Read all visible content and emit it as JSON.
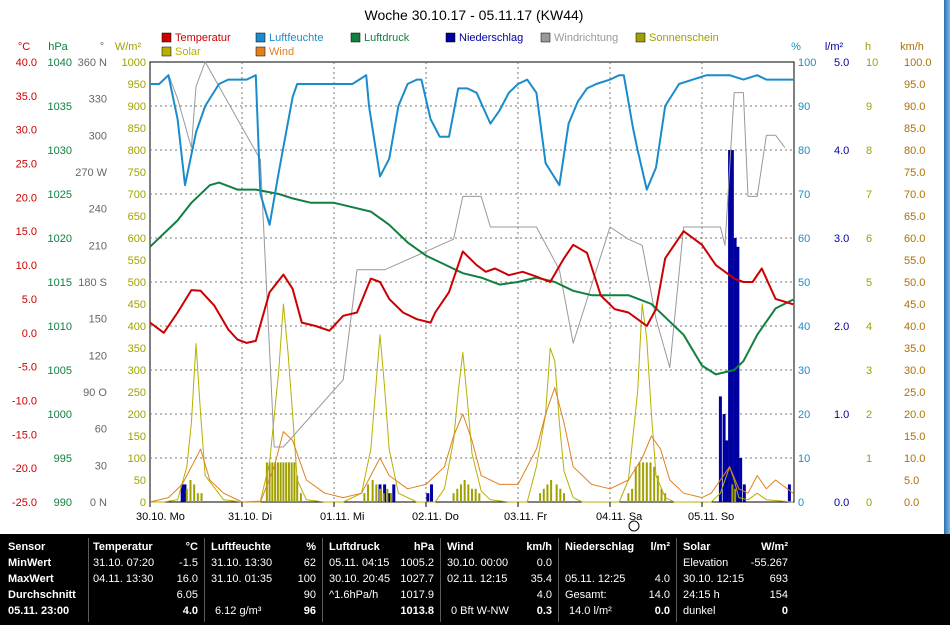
{
  "title": "Woche 30.10.17 - 05.11.17 (KW44)",
  "legend": [
    {
      "label": "Temperatur",
      "color": "#cc0000"
    },
    {
      "label": "Luftfeuchte",
      "color": "#1a8ccc"
    },
    {
      "label": "Luftdruck",
      "color": "#108040"
    },
    {
      "label": "Niederschlag",
      "color": "#0000a0"
    },
    {
      "label": "Windrichtung",
      "color": "#999999"
    },
    {
      "label": "Sonnenschein",
      "color": "#a0a000"
    },
    {
      "label": "Solar",
      "color": "#b8b000"
    },
    {
      "label": "Wind",
      "color": "#e08020"
    }
  ],
  "chart_data": {
    "type": "line",
    "title": "Woche 30.10.17 - 05.11.17 (KW44)",
    "x_tick_labels": [
      "30.10. Mo",
      "31.10. Di",
      "01.11. Mi",
      "02.11. Do",
      "03.11. Fr",
      "04.11. Sa",
      "05.11. So"
    ],
    "axes": {
      "temperature": {
        "unit": "°C",
        "range": [
          -25,
          40
        ],
        "ticks": [
          "40.0",
          "35.0",
          "30.0",
          "25.0",
          "20.0",
          "15.0",
          "10.0",
          "5.0",
          "0.0",
          "-5.0",
          "-10.0",
          "-15.0",
          "-20.0",
          "-25.0"
        ],
        "color": "#cc0000"
      },
      "pressure": {
        "unit": "hPa",
        "range": [
          990,
          1040
        ],
        "ticks": [
          "1040",
          "1035",
          "1030",
          "1025",
          "1020",
          "1015",
          "1010",
          "1005",
          "1000",
          "995",
          "990"
        ],
        "color": "#108040"
      },
      "wind_direction": {
        "unit": "°",
        "range": [
          0,
          360
        ],
        "ticks": [
          "360 N",
          "330",
          "300",
          "270 W",
          "240",
          "210",
          "180 S",
          "150",
          "120",
          "90 O",
          "60",
          "30",
          "0 N"
        ],
        "color": "#666666"
      },
      "solar": {
        "unit": "W/m²",
        "range": [
          0,
          1000
        ],
        "ticks": [
          "1000",
          "950",
          "900",
          "850",
          "800",
          "750",
          "700",
          "650",
          "600",
          "550",
          "500",
          "450",
          "400",
          "350",
          "300",
          "250",
          "200",
          "150",
          "100",
          "50",
          "0"
        ],
        "color": "#a0a000"
      },
      "humidity": {
        "unit": "%",
        "range": [
          0,
          100
        ],
        "ticks": [
          "100",
          "90",
          "80",
          "70",
          "60",
          "50",
          "40",
          "30",
          "20",
          "10",
          "0"
        ],
        "color": "#1a8ccc"
      },
      "precipitation": {
        "unit": "l/m²",
        "range": [
          0,
          5
        ],
        "ticks": [
          "5.0",
          "4.0",
          "3.0",
          "2.0",
          "1.0",
          "0.0"
        ],
        "color": "#0000a0"
      },
      "sunshine": {
        "unit": "h",
        "range": [
          0,
          10
        ],
        "ticks": [
          "10",
          "9",
          "8",
          "7",
          "6",
          "5",
          "4",
          "3",
          "2",
          "1",
          "0"
        ],
        "color": "#a0a000"
      },
      "wind_speed": {
        "unit": "km/h",
        "range": [
          0,
          100
        ],
        "ticks": [
          "100.0",
          "95.0",
          "90.0",
          "85.0",
          "80.0",
          "75.0",
          "70.0",
          "65.0",
          "60.0",
          "55.0",
          "50.0",
          "45.0",
          "40.0",
          "35.0",
          "30.0",
          "25.0",
          "20.0",
          "15.0",
          "10.0",
          "5.0",
          "0.0"
        ],
        "color": "#b07000"
      }
    },
    "x_unit": "day",
    "x_range": [
      0,
      7
    ],
    "series": [
      {
        "name": "Temperatur",
        "axis": "temperature",
        "color": "#cc0000",
        "x": [
          0,
          0.15,
          0.3,
          0.45,
          0.55,
          0.7,
          0.85,
          0.95,
          1.05,
          1.15,
          1.3,
          1.45,
          1.55,
          1.65,
          1.8,
          1.95,
          2.1,
          2.25,
          2.4,
          2.5,
          2.6,
          2.75,
          2.9,
          3.05,
          3.1,
          3.25,
          3.4,
          3.55,
          3.65,
          3.75,
          3.9,
          4.05,
          4.2,
          4.35,
          4.5,
          4.6,
          4.75,
          4.9,
          5.05,
          5.2,
          5.3,
          5.4,
          5.5,
          5.6,
          5.8,
          6.0,
          6.15,
          6.35,
          6.45,
          6.55,
          6.65,
          6.8,
          6.99
        ],
        "y": [
          1.5,
          0,
          3,
          6.3,
          6.2,
          4,
          0.5,
          -1,
          -1.5,
          -1.2,
          6,
          8.6,
          6.5,
          1.5,
          1,
          0.3,
          2.5,
          3,
          8,
          7.5,
          5,
          3,
          2,
          1.5,
          3,
          6,
          12,
          10,
          9,
          9.5,
          8.5,
          9,
          8.3,
          7.5,
          11,
          13,
          11.8,
          5.5,
          3.5,
          3,
          2,
          1,
          3.5,
          11,
          15,
          13,
          10,
          8,
          7.5,
          7.5,
          9.5,
          5,
          4.2
        ]
      },
      {
        "name": "Luftfeuchte",
        "axis": "humidity",
        "color": "#1a8ccc",
        "x": [
          0,
          0.1,
          0.2,
          0.3,
          0.38,
          0.5,
          0.6,
          0.75,
          0.85,
          0.95,
          1.05,
          1.15,
          1.2,
          1.3,
          1.4,
          1.55,
          1.6,
          1.75,
          1.9,
          2.05,
          2.2,
          2.35,
          2.38,
          2.5,
          2.6,
          2.7,
          2.8,
          2.9,
          2.95,
          3.05,
          3.15,
          3.25,
          3.35,
          3.45,
          3.55,
          3.7,
          3.8,
          3.9,
          4.0,
          4.1,
          4.2,
          4.3,
          4.45,
          4.55,
          4.65,
          4.75,
          4.85,
          5.0,
          5.1,
          5.15,
          5.25,
          5.3,
          5.4,
          5.5,
          5.6,
          5.75,
          5.9,
          6.05,
          6.15,
          6.3,
          6.45,
          6.6,
          6.7,
          6.8,
          6.99
        ],
        "y": [
          95,
          95,
          97,
          87,
          72,
          84,
          90,
          95,
          96,
          96,
          96,
          97,
          70,
          63,
          75,
          92,
          95,
          95,
          95,
          95,
          95,
          97,
          90,
          74,
          78,
          90,
          95,
          96,
          96,
          87,
          83,
          83,
          94,
          94,
          93,
          86,
          89,
          93,
          95,
          96,
          93,
          77,
          72,
          86,
          91,
          94,
          95,
          96,
          97,
          97,
          85,
          80,
          71,
          76,
          90,
          95,
          96,
          97,
          97,
          97,
          96,
          97,
          96,
          96,
          96
        ]
      },
      {
        "name": "Luftdruck",
        "axis": "pressure",
        "color": "#108040",
        "x": [
          0,
          0.3,
          0.45,
          0.65,
          0.75,
          0.95,
          1.15,
          1.4,
          1.55,
          1.75,
          2.0,
          2.2,
          2.4,
          2.6,
          2.8,
          3.0,
          3.2,
          3.4,
          3.6,
          3.8,
          4.0,
          4.2,
          4.4,
          4.6,
          4.8,
          5.0,
          5.2,
          5.45,
          5.6,
          5.8,
          6.0,
          6.15,
          6.35,
          6.45,
          6.6,
          6.8,
          6.99
        ],
        "y": [
          1019,
          1022,
          1024,
          1026,
          1026.3,
          1025.5,
          1025.5,
          1025,
          1024.5,
          1024,
          1024,
          1023.5,
          1023,
          1021.5,
          1019.5,
          1018,
          1017,
          1016,
          1015.5,
          1014.7,
          1015,
          1015.5,
          1015,
          1014,
          1013.5,
          1013.5,
          1013.5,
          1012.5,
          1011,
          1009,
          1005.5,
          1004.5,
          1005,
          1006,
          1009,
          1012,
          1013
        ]
      },
      {
        "name": "Windrichtung",
        "axis": "wind_direction",
        "color": "#999999",
        "x": [
          0.2,
          0.3,
          0.45,
          0.5,
          0.6,
          1.2,
          1.35,
          1.45,
          2.1,
          2.25,
          2.38,
          2.55,
          3.3,
          3.4,
          3.6,
          3.7,
          3.85,
          4.0,
          4.2,
          4.45,
          4.5,
          4.55,
          4.6,
          5.0,
          5.2,
          5.35,
          5.5,
          5.65,
          5.8,
          6.2,
          6.25,
          6.35,
          6.45,
          6.5,
          6.6,
          6.7,
          6.8,
          6.9
        ],
        "y": [
          350,
          330,
          290,
          340,
          360,
          280,
          45,
          45,
          100,
          190,
          190,
          190,
          215,
          250,
          250,
          225,
          225,
          225,
          225,
          190,
          170,
          150,
          130,
          225,
          215,
          210,
          150,
          110,
          225,
          225,
          210,
          335,
          335,
          250,
          250,
          300,
          300,
          290
        ]
      },
      {
        "name": "Solar",
        "axis": "solar",
        "color": "#b8b000",
        "x": [
          0,
          0.15,
          0.3,
          0.4,
          0.45,
          0.5,
          0.55,
          0.6,
          0.8,
          1.0,
          1.2,
          1.3,
          1.4,
          1.45,
          1.5,
          1.55,
          1.6,
          1.7,
          1.9,
          2.1,
          2.3,
          2.4,
          2.45,
          2.5,
          2.55,
          2.6,
          2.7,
          2.9,
          3.1,
          3.2,
          3.3,
          3.35,
          3.4,
          3.45,
          3.5,
          3.6,
          3.7,
          3.9,
          4.1,
          4.2,
          4.3,
          4.35,
          4.4,
          4.45,
          4.5,
          4.6,
          4.7,
          4.9,
          5.1,
          5.2,
          5.3,
          5.35,
          5.4,
          5.45,
          5.5,
          5.6,
          5.7,
          5.9,
          6.1,
          6.2,
          6.3,
          6.35,
          6.4,
          6.5,
          6.6,
          6.7,
          6.99
        ],
        "y": [
          0,
          0,
          5,
          80,
          180,
          360,
          200,
          60,
          5,
          0,
          2,
          90,
          300,
          450,
          340,
          200,
          50,
          5,
          0,
          0,
          20,
          120,
          250,
          380,
          260,
          120,
          20,
          0,
          0,
          30,
          140,
          250,
          340,
          230,
          110,
          25,
          5,
          0,
          0,
          80,
          200,
          350,
          320,
          180,
          70,
          10,
          0,
          0,
          0,
          50,
          250,
          450,
          370,
          200,
          60,
          10,
          0,
          0,
          0,
          20,
          80,
          50,
          10,
          5,
          20,
          5,
          0
        ]
      },
      {
        "name": "Wind",
        "axis": "wind_speed",
        "color": "#e08020",
        "x": [
          0,
          0.2,
          0.35,
          0.45,
          0.55,
          0.65,
          0.8,
          1.0,
          1.2,
          1.35,
          1.45,
          1.55,
          1.7,
          1.9,
          2.1,
          2.3,
          2.4,
          2.5,
          2.6,
          2.8,
          3.0,
          3.2,
          3.3,
          3.4,
          3.5,
          3.6,
          3.8,
          4.0,
          4.2,
          4.3,
          4.4,
          4.5,
          4.6,
          4.8,
          5.0,
          5.2,
          5.35,
          5.45,
          5.55,
          5.65,
          5.8,
          6.0,
          6.1,
          6.2,
          6.3,
          6.4,
          6.5,
          6.6,
          6.7,
          6.8,
          6.99
        ],
        "y": [
          0,
          1,
          4,
          8,
          12,
          5,
          2,
          0,
          0,
          8,
          16,
          14,
          5,
          2,
          1,
          2,
          6,
          10,
          6,
          3,
          4,
          8,
          15,
          20,
          14,
          6,
          4,
          4,
          12,
          20,
          26,
          18,
          8,
          4,
          3,
          5,
          10,
          15,
          12,
          5,
          2,
          1,
          2,
          5,
          8,
          3,
          2,
          6,
          3,
          5,
          2
        ]
      }
    ],
    "bars": [
      {
        "name": "Niederschlag",
        "axis": "precipitation",
        "color": "#0000a0",
        "x": [
          0.35,
          0.38,
          2.5,
          2.55,
          2.6,
          2.65,
          3.02,
          3.06,
          6.2,
          6.24,
          6.27,
          6.3,
          6.33,
          6.36,
          6.39,
          6.42,
          6.46,
          6.95
        ],
        "values": [
          0.2,
          0.2,
          0.2,
          0.2,
          0.1,
          0.2,
          0.1,
          0.2,
          1.2,
          1.0,
          0.7,
          4.0,
          4.0,
          3.0,
          2.9,
          0.5,
          0.2,
          0.2
        ]
      },
      {
        "name": "Sonnenschein",
        "axis": "sunshine",
        "color": "#a0a000",
        "x": [
          0.4,
          0.44,
          0.48,
          0.52,
          0.56,
          1.27,
          1.3,
          1.33,
          1.36,
          1.39,
          1.42,
          1.45,
          1.48,
          1.51,
          1.54,
          1.57,
          1.6,
          1.64,
          2.33,
          2.37,
          2.42,
          2.46,
          2.5,
          2.54,
          2.58,
          2.62,
          3.3,
          3.34,
          3.38,
          3.42,
          3.46,
          3.5,
          3.54,
          3.58,
          4.24,
          4.28,
          4.32,
          4.36,
          4.42,
          4.46,
          4.5,
          5.2,
          5.24,
          5.28,
          5.32,
          5.36,
          5.4,
          5.44,
          5.48,
          5.52,
          5.56,
          5.6,
          6.33,
          6.36
        ],
        "values": [
          0.3,
          0.5,
          0.4,
          0.2,
          0.2,
          0.9,
          0.9,
          0.9,
          0.9,
          0.9,
          0.9,
          0.9,
          0.9,
          0.9,
          0.9,
          0.9,
          0.6,
          0.2,
          0.2,
          0.4,
          0.5,
          0.4,
          0.3,
          0.2,
          0.3,
          0.2,
          0.2,
          0.3,
          0.4,
          0.5,
          0.4,
          0.3,
          0.3,
          0.2,
          0.2,
          0.3,
          0.4,
          0.5,
          0.4,
          0.3,
          0.2,
          0.2,
          0.3,
          0.8,
          0.9,
          0.9,
          0.9,
          0.9,
          0.8,
          0.6,
          0.3,
          0.2,
          0.4,
          0.3
        ]
      }
    ],
    "grid": true,
    "legend_position": "top"
  },
  "stats": {
    "sensor": {
      "h1": "Sensor",
      "r1": "MinWert",
      "r2": "MaxWert",
      "r3": "Durchschnitt",
      "r4": "05.11. 23:00"
    },
    "temperature": {
      "h1": "Temperatur",
      "h2": "°C",
      "r1a": "31.10.  07:20",
      "r1b": "-1.5",
      "r2a": "04.11.  13:30",
      "r2b": "16.0",
      "r3b": "6.05",
      "r4b": "4.0"
    },
    "humidity": {
      "h1": "Luftfeuchte",
      "h2": "%",
      "r1a": "31.10.  13:30",
      "r1b": "62",
      "r2a": "31.10.  01:35",
      "r2b": "100",
      "r3b": "90",
      "r4a": "6.12 g/m³",
      "r4b": "96"
    },
    "pressure": {
      "h1": "Luftdruck",
      "h2": "hPa",
      "r1a": "05.11.  04:15",
      "r1b": "1005.2",
      "r2a": "30.10.  20:45",
      "r2b": "1027.7",
      "r3a": "^1.6hPa/h",
      "r3b": "1017.9",
      "r4b": "1013.8"
    },
    "wind": {
      "h1": "Wind",
      "h2": "km/h",
      "r1a": "30.10.  00:00",
      "r1b": "0.0",
      "r2a": "02.11.  12:15",
      "r2b": "35.4",
      "r3b": "4.0",
      "r4a": "0 Bft W-NW",
      "r4b": "0.3"
    },
    "rain": {
      "h1": "Niederschlag",
      "h2": "l/m²",
      "r2a": "05.11.  12:25",
      "r2b": "4.0",
      "r3a": "Gesamt:",
      "r3b": "14.0",
      "r4a": "14.0 l/m²",
      "r4b": "0.0"
    },
    "solar": {
      "h1": "Solar",
      "h2": "W/m²",
      "r1a": "Elevation",
      "r1b": "-55.267",
      "r2a": "30.10.  12:15",
      "r2b": "693",
      "r3a": "24:15 h",
      "r3b": "154",
      "r4a": "dunkel",
      "r4b": "0"
    }
  }
}
